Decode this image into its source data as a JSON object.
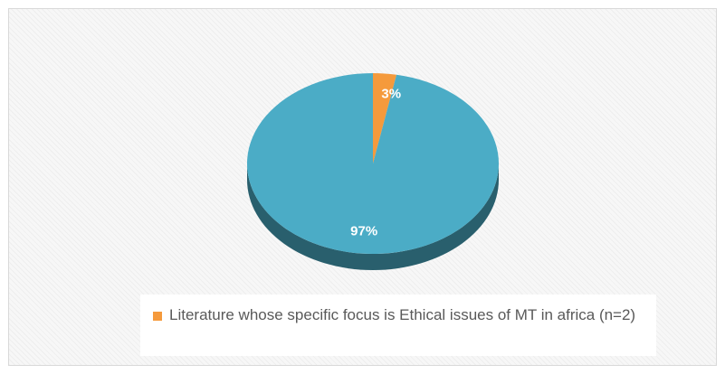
{
  "chart_data": {
    "type": "pie",
    "slices": [
      {
        "label": "",
        "value": 3,
        "display": "3%",
        "color": "#F59A3C"
      },
      {
        "label": "",
        "value": 97,
        "display": "97%",
        "color": "#4BACC6"
      }
    ],
    "legend": {
      "position": "bottom",
      "entries": [
        {
          "text": "Literature whose specific focus is Ethical issues of MT in africa (n=2)",
          "color": "#F59A3C"
        }
      ]
    },
    "style": "3d"
  }
}
